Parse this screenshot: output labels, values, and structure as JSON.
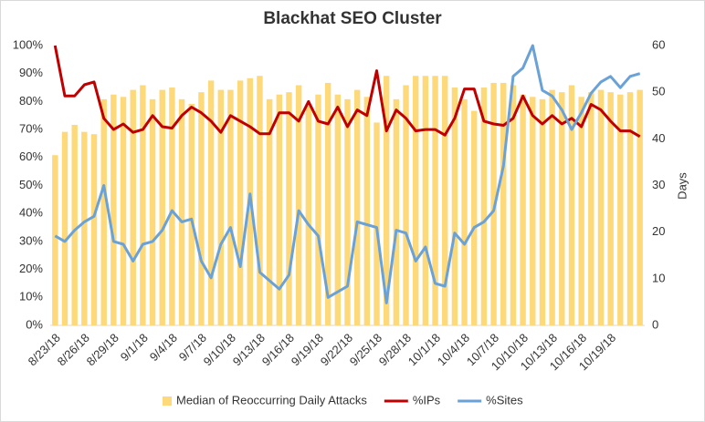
{
  "chart_data": {
    "type": "combo",
    "title": "Blackhat SEO Cluster",
    "y2label": "Days",
    "categories": [
      "8/23/18",
      null,
      null,
      "8/26/18",
      null,
      null,
      "8/29/18",
      null,
      null,
      "9/1/18",
      null,
      null,
      "9/4/18",
      null,
      null,
      "9/7/18",
      null,
      null,
      "9/10/18",
      null,
      null,
      "9/13/18",
      null,
      null,
      "9/16/18",
      null,
      null,
      "9/19/18",
      null,
      null,
      "9/22/18",
      null,
      null,
      "9/25/18",
      null,
      null,
      "9/28/18",
      null,
      null,
      "10/1/18",
      null,
      null,
      "10/4/18",
      null,
      null,
      "10/7/18",
      null,
      null,
      "10/10/18",
      null,
      null,
      "10/13/18",
      null,
      null,
      "10/16/18",
      null,
      null,
      "10/19/18",
      null,
      null,
      null
    ],
    "series": [
      {
        "name": "Median of Reoccurring Daily Attacks",
        "type": "bar",
        "axis": "y2",
        "color": "#fdd97a",
        "values": [
          36.5,
          41.5,
          43,
          41.5,
          41,
          48.5,
          49.5,
          49,
          50.5,
          51.5,
          48.5,
          50.5,
          51,
          48.5,
          47.5,
          50,
          52.5,
          50.5,
          50.5,
          52.5,
          53,
          53.5,
          48.5,
          49.5,
          50,
          51.5,
          47,
          49.5,
          52,
          49.5,
          48.5,
          50.5,
          49,
          43.5,
          53.5,
          48.5,
          51.5,
          53.5,
          53.5,
          53.5,
          53.5,
          51,
          48.5,
          46,
          51,
          52,
          52,
          51.5,
          49.5,
          49,
          48.5,
          50.5,
          50,
          51.5,
          49,
          50,
          50.5,
          50,
          49.5,
          50,
          50.5
        ]
      },
      {
        "name": "%IPs",
        "type": "line",
        "color": "#c00000",
        "values": [
          100,
          82,
          82,
          86,
          87,
          74,
          70,
          72,
          69,
          70,
          75,
          71,
          70.5,
          75,
          78,
          76,
          73,
          69,
          75,
          73,
          71,
          68.5,
          68.5,
          76,
          76,
          73,
          80,
          73,
          72,
          78,
          71,
          77,
          75,
          91,
          69.5,
          77,
          74,
          69.5,
          70,
          70,
          68,
          74,
          84.5,
          84.5,
          73,
          72,
          71.5,
          74,
          82,
          75,
          72,
          75,
          72,
          74,
          71,
          79,
          77,
          73,
          69.5,
          69.5,
          67.5
        ]
      },
      {
        "name": "%Sites",
        "type": "line",
        "color": "#6aa2d8",
        "values": [
          32,
          30,
          34,
          37,
          39,
          50,
          30,
          29,
          23,
          29,
          30,
          34,
          41,
          37,
          38,
          23,
          17,
          29,
          35,
          21,
          47,
          19,
          16,
          13,
          18,
          41,
          36,
          32,
          10,
          12,
          14,
          37,
          36,
          35,
          8,
          34,
          33,
          23,
          28,
          15,
          14,
          33,
          29,
          35,
          37,
          41,
          57,
          89,
          92,
          100,
          84,
          82,
          77,
          70,
          76,
          83,
          87,
          89,
          85,
          89,
          90
        ]
      }
    ],
    "ylim": [
      0,
      100
    ],
    "yticks": [
      {
        "value": 0,
        "label": "0%"
      },
      {
        "value": 10,
        "label": "10%"
      },
      {
        "value": 20,
        "label": "20%"
      },
      {
        "value": 30,
        "label": "30%"
      },
      {
        "value": 40,
        "label": "40%"
      },
      {
        "value": 50,
        "label": "50%"
      },
      {
        "value": 60,
        "label": "60%"
      },
      {
        "value": 70,
        "label": "70%"
      },
      {
        "value": 80,
        "label": "80%"
      },
      {
        "value": 90,
        "label": "90%"
      },
      {
        "value": 100,
        "label": "100%"
      }
    ],
    "y2lim": [
      0,
      60
    ],
    "y2ticks": [
      0,
      10,
      20,
      30,
      40,
      50,
      60
    ],
    "grid": false,
    "legend": "bottom"
  }
}
